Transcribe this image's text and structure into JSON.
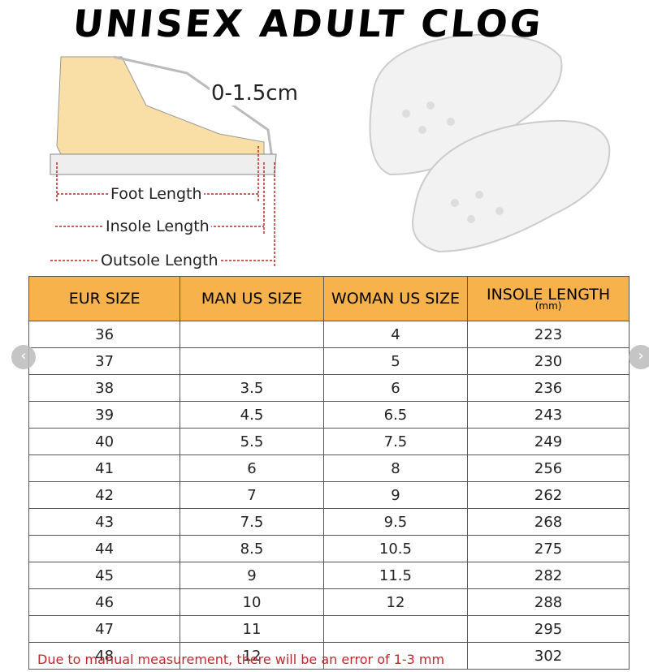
{
  "header": {
    "title": "UNISEX ADULT CLOG"
  },
  "diagram": {
    "gap_label": "0-1.5cm",
    "foot_length": "Foot Length",
    "insole_length": "Insole Length",
    "outsole_length": "Outsole Length"
  },
  "table": {
    "columns": [
      "EUR SIZE",
      "MAN US SIZE",
      "WOMAN US SIZE",
      "INSOLE LENGTH"
    ],
    "unit": "(mm)",
    "rows": [
      [
        36,
        null,
        4,
        223
      ],
      [
        37,
        null,
        5,
        230
      ],
      [
        38,
        3.5,
        6,
        236
      ],
      [
        39,
        4.5,
        6.5,
        243
      ],
      [
        40,
        5.5,
        7.5,
        249
      ],
      [
        41,
        6,
        8,
        256
      ],
      [
        42,
        7,
        9,
        262
      ],
      [
        43,
        7.5,
        9.5,
        268
      ],
      [
        44,
        8.5,
        10.5,
        275
      ],
      [
        45,
        9,
        11.5,
        282
      ],
      [
        46,
        10,
        12,
        288
      ],
      [
        47,
        11,
        null,
        295
      ],
      [
        48,
        12,
        null,
        302
      ]
    ]
  },
  "footnote": "Due to manual measurement, there will be an error of 1-3 mm"
}
